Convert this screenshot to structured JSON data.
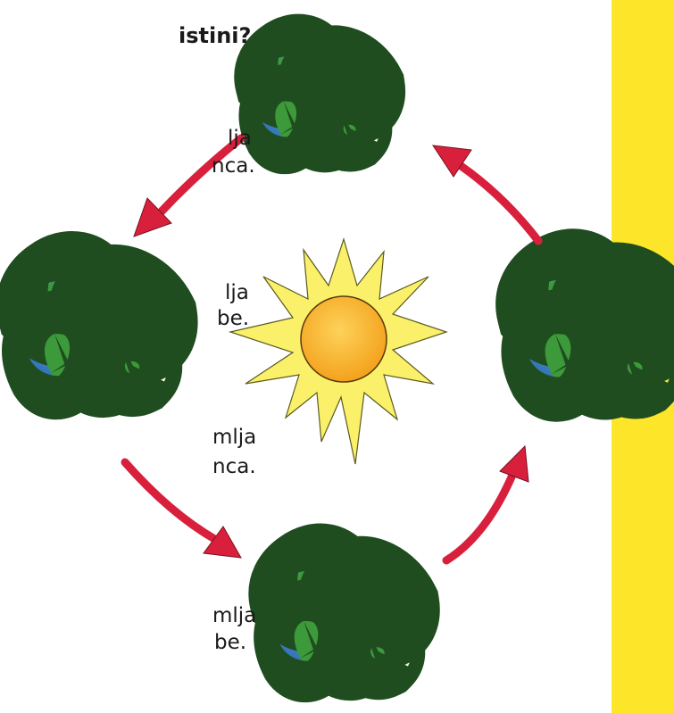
{
  "heading": "istini?",
  "options": [
    {
      "line1": "lja",
      "line2": "nca."
    },
    {
      "line1": "lja",
      "line2": "be."
    },
    {
      "line1": "mlja",
      "line2": "nca."
    },
    {
      "line1": "mlja",
      "line2": "be."
    }
  ]
}
